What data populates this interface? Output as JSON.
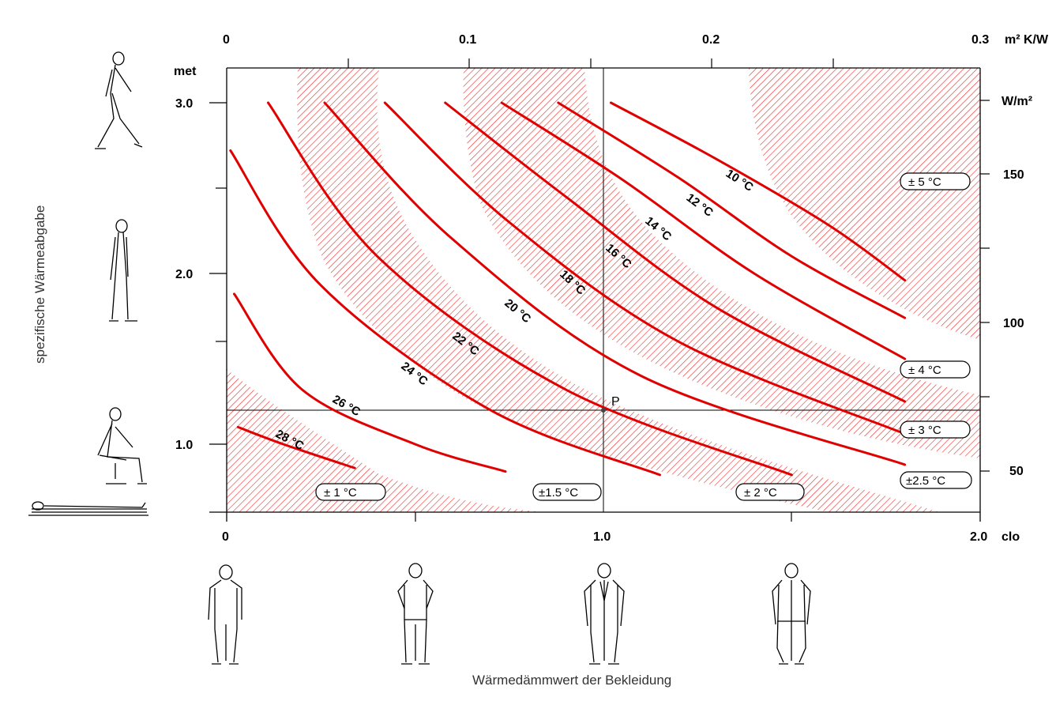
{
  "chart_data": {
    "type": "line",
    "x_axis": {
      "label": "Wärmedämmwert der Bekleidung",
      "unit": "clo",
      "range": [
        0,
        2.0
      ],
      "tick_labels": [
        "0",
        "1.0",
        "2.0"
      ]
    },
    "x2_axis": {
      "unit": "m² K/W",
      "range": [
        0,
        0.3
      ],
      "tick_labels": [
        "0",
        "0.1",
        "0.2",
        "0.3"
      ]
    },
    "y_axis": {
      "label": "spezifische Wärmeabgabe",
      "unit": "met",
      "range": [
        0.6,
        3.2
      ],
      "tick_labels": [
        "1.0",
        "2.0",
        "3.0"
      ]
    },
    "y2_axis": {
      "unit": "W/m²",
      "tick_labels": [
        "50",
        "100",
        "150"
      ]
    },
    "series": [
      {
        "name": "10 °C",
        "points": [
          [
            1.02,
            3.0
          ],
          [
            1.3,
            2.67
          ],
          [
            1.6,
            2.28
          ],
          [
            1.8,
            1.96
          ]
        ]
      },
      {
        "name": "12 °C",
        "points": [
          [
            0.88,
            3.0
          ],
          [
            1.2,
            2.56
          ],
          [
            1.5,
            2.1
          ],
          [
            1.8,
            1.74
          ]
        ]
      },
      {
        "name": "14 °C",
        "points": [
          [
            0.73,
            3.0
          ],
          [
            1.05,
            2.55
          ],
          [
            1.4,
            2.0
          ],
          [
            1.8,
            1.5
          ]
        ]
      },
      {
        "name": "16 °C",
        "points": [
          [
            0.58,
            3.0
          ],
          [
            0.9,
            2.45
          ],
          [
            1.3,
            1.8
          ],
          [
            1.8,
            1.25
          ]
        ]
      },
      {
        "name": "18 °C",
        "points": [
          [
            0.42,
            3.0
          ],
          [
            0.75,
            2.3
          ],
          [
            1.2,
            1.6
          ],
          [
            1.8,
            1.06
          ]
        ]
      },
      {
        "name": "20 °C",
        "points": [
          [
            0.26,
            3.0
          ],
          [
            0.6,
            2.2
          ],
          [
            1.1,
            1.4
          ],
          [
            1.8,
            0.88
          ]
        ]
      },
      {
        "name": "22 °C",
        "points": [
          [
            0.11,
            3.0
          ],
          [
            0.4,
            2.1
          ],
          [
            0.9,
            1.32
          ],
          [
            1.5,
            0.82
          ]
        ]
      },
      {
        "name": "24 °C",
        "points": [
          [
            0.01,
            2.72
          ],
          [
            0.25,
            1.93
          ],
          [
            0.7,
            1.2
          ],
          [
            1.15,
            0.82
          ]
        ]
      },
      {
        "name": "26 °C",
        "points": [
          [
            0.02,
            1.88
          ],
          [
            0.2,
            1.32
          ],
          [
            0.5,
            1.0
          ],
          [
            0.74,
            0.84
          ]
        ]
      },
      {
        "name": "28 °C",
        "points": [
          [
            0.03,
            1.1
          ],
          [
            0.15,
            1.0
          ],
          [
            0.34,
            0.86
          ]
        ]
      }
    ],
    "reference_point": {
      "label": "P",
      "x": 1.0,
      "y": 1.2
    },
    "tolerance_labels": [
      "± 1 °C",
      "±1.5 °C",
      "± 2 °C",
      "±2.5 °C",
      "± 3 °C",
      "± 4 °C",
      "± 5 °C"
    ],
    "colors": {
      "curve": "#e00000",
      "hatch": "#ef2a2a",
      "axis": "#000000"
    },
    "grid": "reference lines only",
    "illustrations": {
      "y_axis_activities": [
        "walking-person-icon",
        "standing-person-icon",
        "seated-person-icon",
        "lying-person-icon"
      ],
      "x_axis_clothing": [
        "nude-person-icon",
        "light-clothing-person-icon",
        "business-suit-person-icon",
        "heavy-clothing-person-icon"
      ]
    }
  },
  "labels": {
    "met": "met",
    "clo": "clo",
    "top_unit": "m² K/W",
    "right_unit": "W/m²",
    "point": "P"
  }
}
